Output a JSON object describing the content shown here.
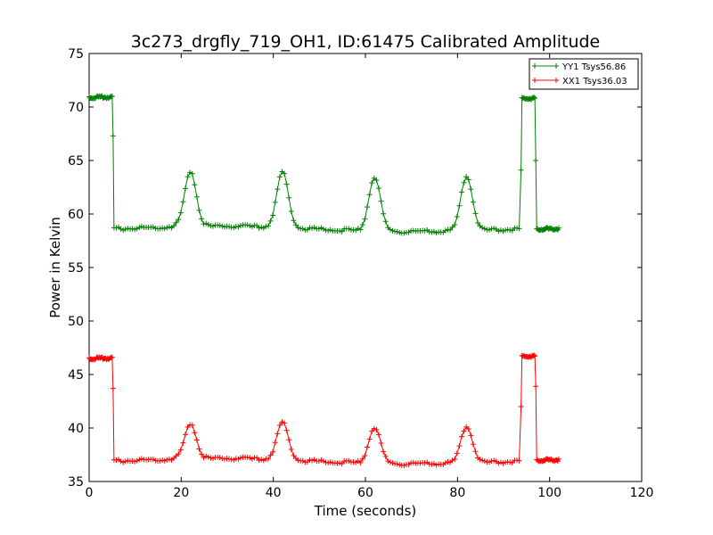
{
  "chart_data": {
    "type": "line",
    "title": "3c273_drgfly_719_OH1, ID:61475 Calibrated Amplitude",
    "xlabel": "Time (seconds)",
    "ylabel": "Power in Kelvin",
    "xlim": [
      0,
      120
    ],
    "ylim": [
      35,
      75
    ],
    "xticks": [
      "0",
      "20",
      "40",
      "60",
      "80",
      "100",
      "120"
    ],
    "yticks": [
      "35",
      "40",
      "45",
      "50",
      "55",
      "60",
      "65",
      "70",
      "75"
    ],
    "grid": false,
    "legend": {
      "position": "top-right"
    },
    "series": [
      {
        "name": "YY1 Tsys56.86",
        "color": "#008000",
        "marker": "+",
        "baseline_before": 70.9,
        "baseline_between": 58.6,
        "baseline_after": 58.6,
        "peaks": [
          {
            "x": 22,
            "y": 63.8
          },
          {
            "x": 42,
            "y": 63.8
          },
          {
            "x": 62,
            "y": 63.7
          },
          {
            "x": 82,
            "y": 63.8
          }
        ],
        "steps": [
          {
            "x": 5.0,
            "y": 70.9
          },
          {
            "x": 5.2,
            "y": 67.3
          },
          {
            "x": 5.4,
            "y": 58.6
          },
          {
            "x": 93.6,
            "y": 58.4
          },
          {
            "x": 93.8,
            "y": 64.1
          },
          {
            "x": 94.0,
            "y": 70.8
          },
          {
            "x": 96.8,
            "y": 70.8
          },
          {
            "x": 97.0,
            "y": 65.0
          },
          {
            "x": 97.2,
            "y": 58.5
          },
          {
            "x": 102.0,
            "y": 58.6
          }
        ]
      },
      {
        "name": "XX1 Tsys36.03",
        "color": "#ff0000",
        "marker": "+",
        "baseline_before": 46.5,
        "baseline_between": 36.9,
        "baseline_after": 37.0,
        "peaks": [
          {
            "x": 22,
            "y": 40.2
          },
          {
            "x": 42,
            "y": 40.4
          },
          {
            "x": 62,
            "y": 40.3
          },
          {
            "x": 82,
            "y": 40.4
          }
        ],
        "steps": [
          {
            "x": 5.0,
            "y": 46.5
          },
          {
            "x": 5.2,
            "y": 43.7
          },
          {
            "x": 5.4,
            "y": 36.9
          },
          {
            "x": 93.6,
            "y": 36.9
          },
          {
            "x": 93.8,
            "y": 42.0
          },
          {
            "x": 94.0,
            "y": 46.7
          },
          {
            "x": 96.8,
            "y": 46.6
          },
          {
            "x": 97.0,
            "y": 43.9
          },
          {
            "x": 97.2,
            "y": 37.0
          },
          {
            "x": 102.0,
            "y": 37.0
          }
        ]
      }
    ]
  }
}
